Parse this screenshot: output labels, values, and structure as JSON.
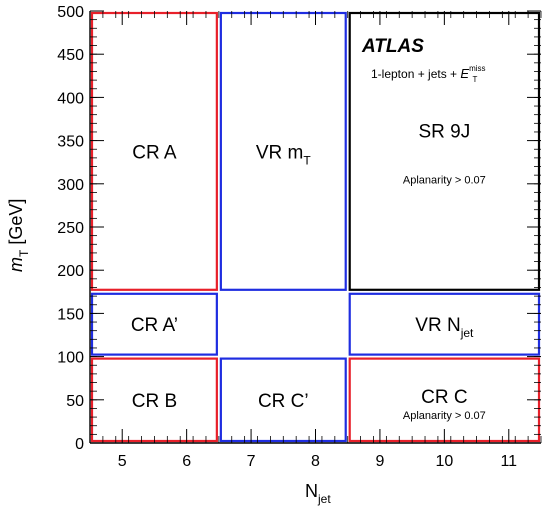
{
  "chart_data": {
    "type": "region-map",
    "xlabel": {
      "main": "N",
      "sub": "jet"
    },
    "ylabel": {
      "main": "m",
      "sub": "T",
      "unit": " [GeV]"
    },
    "xlim": [
      4.5,
      11.5
    ],
    "ylim": [
      0,
      500
    ],
    "x_ticks": [
      5,
      6,
      7,
      8,
      9,
      10,
      11
    ],
    "y_ticks": [
      0,
      50,
      100,
      150,
      200,
      250,
      300,
      350,
      400,
      450,
      500
    ],
    "experiment": "ATLAS",
    "channel": {
      "prefix": "1-lepton + jets + ",
      "symbol": "E",
      "sub": "T",
      "sup": "miss"
    },
    "colors": {
      "control": "#e8202a",
      "validation": "#1f2de0",
      "signal": "#000000"
    },
    "regions": [
      {
        "id": "cr-a",
        "kind": "control",
        "x": [
          4.5,
          6.5
        ],
        "y": [
          175,
          500
        ],
        "label": "CR A"
      },
      {
        "id": "vr-mt",
        "kind": "validation",
        "x": [
          6.5,
          8.5
        ],
        "y": [
          175,
          500
        ],
        "label": "VR m",
        "label_sub": "T"
      },
      {
        "id": "sr-9j",
        "kind": "signal",
        "x": [
          8.5,
          11.5
        ],
        "y": [
          175,
          500
        ],
        "label": "SR 9J",
        "note": "Aplanarity > 0.07"
      },
      {
        "id": "cr-a-prime",
        "kind": "validation",
        "x": [
          4.5,
          6.5
        ],
        "y": [
          100,
          175
        ],
        "label": "CR A’"
      },
      {
        "id": "vr-njet",
        "kind": "validation",
        "x": [
          8.5,
          11.5
        ],
        "y": [
          100,
          175
        ],
        "label": "VR N",
        "label_sub": "jet"
      },
      {
        "id": "cr-b",
        "kind": "control",
        "x": [
          4.5,
          6.5
        ],
        "y": [
          0,
          100
        ],
        "label": "CR B"
      },
      {
        "id": "cr-c-prime",
        "kind": "validation",
        "x": [
          6.5,
          8.5
        ],
        "y": [
          0,
          100
        ],
        "label": "CR C’"
      },
      {
        "id": "cr-c",
        "kind": "control",
        "x": [
          8.5,
          11.5
        ],
        "y": [
          0,
          100
        ],
        "label": "CR C",
        "note": "Aplanarity > 0.07"
      }
    ]
  }
}
